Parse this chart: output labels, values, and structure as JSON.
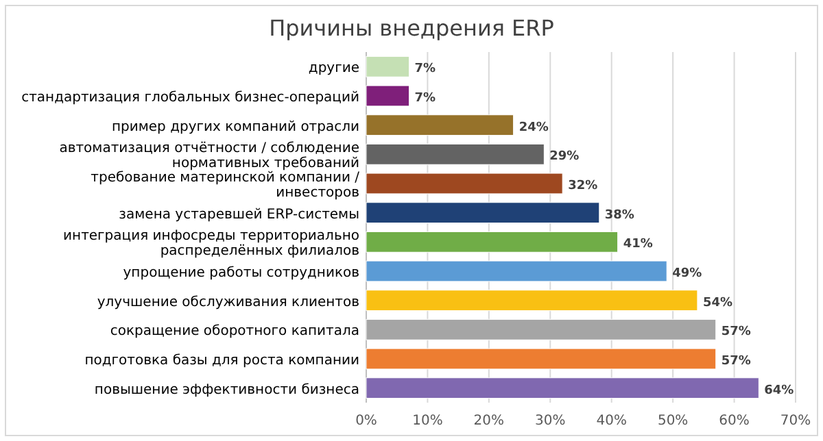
{
  "chart_data": {
    "type": "bar",
    "orientation": "horizontal",
    "title": "Причины внедрения ERP",
    "categories": [
      "другие",
      "стандартизация глобальных бизнес-операций",
      "пример других компаний отрасли",
      "автоматизация отчётности / соблюдение нормативных требований",
      "требование материнской компании / инвесторов",
      "замена устаревшей ERP-системы",
      "интеграция инфосреды территориально распределённых филиалов",
      "упрощение работы сотрудников",
      "улучшение обслуживания клиентов",
      "сокращение оборотного капитала",
      "подготовка базы для роста компании",
      "повышение эффективности бизнеса"
    ],
    "values": [
      7,
      7,
      24,
      29,
      32,
      38,
      41,
      49,
      54,
      57,
      57,
      64
    ],
    "colors": [
      "#c5e0b4",
      "#7f1f7a",
      "#96722a",
      "#636363",
      "#9e4820",
      "#1f4176",
      "#70ad47",
      "#5b9bd5",
      "#f9c013",
      "#a5a5a5",
      "#ed7d31",
      "#8068b0"
    ],
    "value_labels": [
      "7%",
      "7%",
      "24%",
      "29%",
      "32%",
      "38%",
      "41%",
      "49%",
      "54%",
      "57%",
      "57%",
      "64%"
    ],
    "xlim": [
      0,
      70
    ],
    "xticks": [
      {
        "value": 0,
        "label": "0%"
      },
      {
        "value": 10,
        "label": "10%"
      },
      {
        "value": 20,
        "label": "20%"
      },
      {
        "value": 30,
        "label": "30%"
      },
      {
        "value": 40,
        "label": "40%"
      },
      {
        "value": 50,
        "label": "50%"
      },
      {
        "value": 60,
        "label": "60%"
      },
      {
        "value": 70,
        "label": "70%"
      }
    ],
    "grid": "x"
  }
}
